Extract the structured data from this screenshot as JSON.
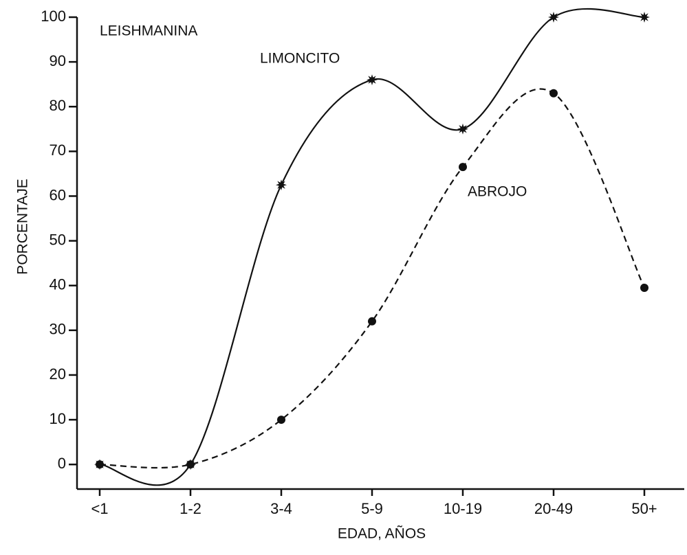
{
  "chart_data": {
    "type": "line",
    "title": "LEISHMANINA",
    "xlabel": "EDAD, AÑOS",
    "ylabel": "PORCENTAJE",
    "categories": [
      "<1",
      "1-2",
      "3-4",
      "5-9",
      "10-19",
      "20-49",
      "50+"
    ],
    "series": [
      {
        "name": "LIMONCITO",
        "color": "#111111",
        "line": "solid",
        "marker": "star",
        "values": [
          0,
          0,
          62.5,
          86,
          75,
          100,
          100
        ]
      },
      {
        "name": "ABROJO",
        "color": "#111111",
        "line": "dashed",
        "marker": "circle",
        "values": [
          0,
          0,
          10,
          32,
          66.5,
          83,
          39.5
        ]
      }
    ],
    "ylim": [
      -5.5,
      100
    ],
    "yticks": [
      0,
      10,
      20,
      30,
      40,
      50,
      60,
      70,
      80,
      90,
      100
    ],
    "grid": false
  }
}
